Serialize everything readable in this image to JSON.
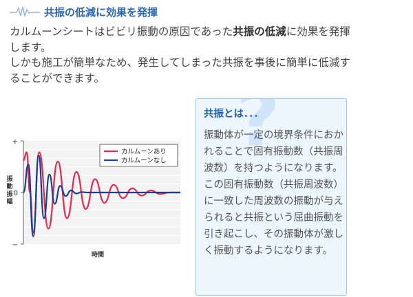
{
  "section": {
    "title": "共振の低減に効果を発揮",
    "icon": "wave-line-icon",
    "accent_color": "#2b66b0"
  },
  "intro": {
    "p1_before": "カルムーンシートはビビリ振動の原因であった",
    "p1_bold": "共振の低減",
    "p1_after": "に効果を発揮します。",
    "p2": "しかも施工が簡単なため、発生してしまった共振を事後に簡単に低減することができます。"
  },
  "chart_data": {
    "type": "line",
    "xlabel": "時間",
    "ylabel": "振動振幅",
    "yticks": [
      "+",
      "0",
      "−"
    ],
    "ylim": [
      -1,
      1
    ],
    "x_range": [
      0,
      16
    ],
    "grid": true,
    "legend_position": "top-right",
    "series": [
      {
        "name": "カルムーンあり",
        "color": "#e5294f",
        "x": [
          0,
          0.33,
          0.67,
          1.0,
          1.6,
          2.55,
          3.5,
          4.45,
          5.4,
          6.35,
          7.3,
          8.25,
          9.2,
          10.15,
          11.1,
          12.05,
          13.0,
          13.95,
          14.9,
          16
        ],
        "y": [
          0.62,
          0.78,
          0.0,
          -0.78,
          0.78,
          -0.7,
          0.6,
          -0.5,
          0.4,
          -0.32,
          0.26,
          -0.2,
          0.15,
          -0.11,
          0.08,
          -0.06,
          0.04,
          -0.03,
          0.0,
          0.0
        ]
      },
      {
        "name": "カルムーンなし",
        "color": "#1a3f8f",
        "x": [
          0,
          0.5,
          1.0,
          1.55,
          2.1,
          2.65,
          3.2,
          3.75,
          4.3,
          4.85,
          5.4,
          5.95,
          6.5,
          7.2,
          8.0,
          16
        ],
        "y": [
          0.0,
          0.55,
          -0.85,
          0.72,
          -0.5,
          0.35,
          -0.22,
          0.13,
          -0.07,
          0.04,
          -0.02,
          0.01,
          0.0,
          0.0,
          0.0,
          0.0
        ]
      }
    ]
  },
  "info": {
    "title": "共振とは．．．",
    "text": "振動体が一定の境界条件におかれることで固有振動数（共振周波数）を持つようになります。この固有振動数（共振周波数）に一致した周波数の振動が与えられると共振という屈曲振動を引き起こし、その振動体が激しく振動するようになります。",
    "decoration_icon": "question-mark-icon",
    "border_color": "#9fc6e6",
    "background_color": "#eef6fd"
  }
}
